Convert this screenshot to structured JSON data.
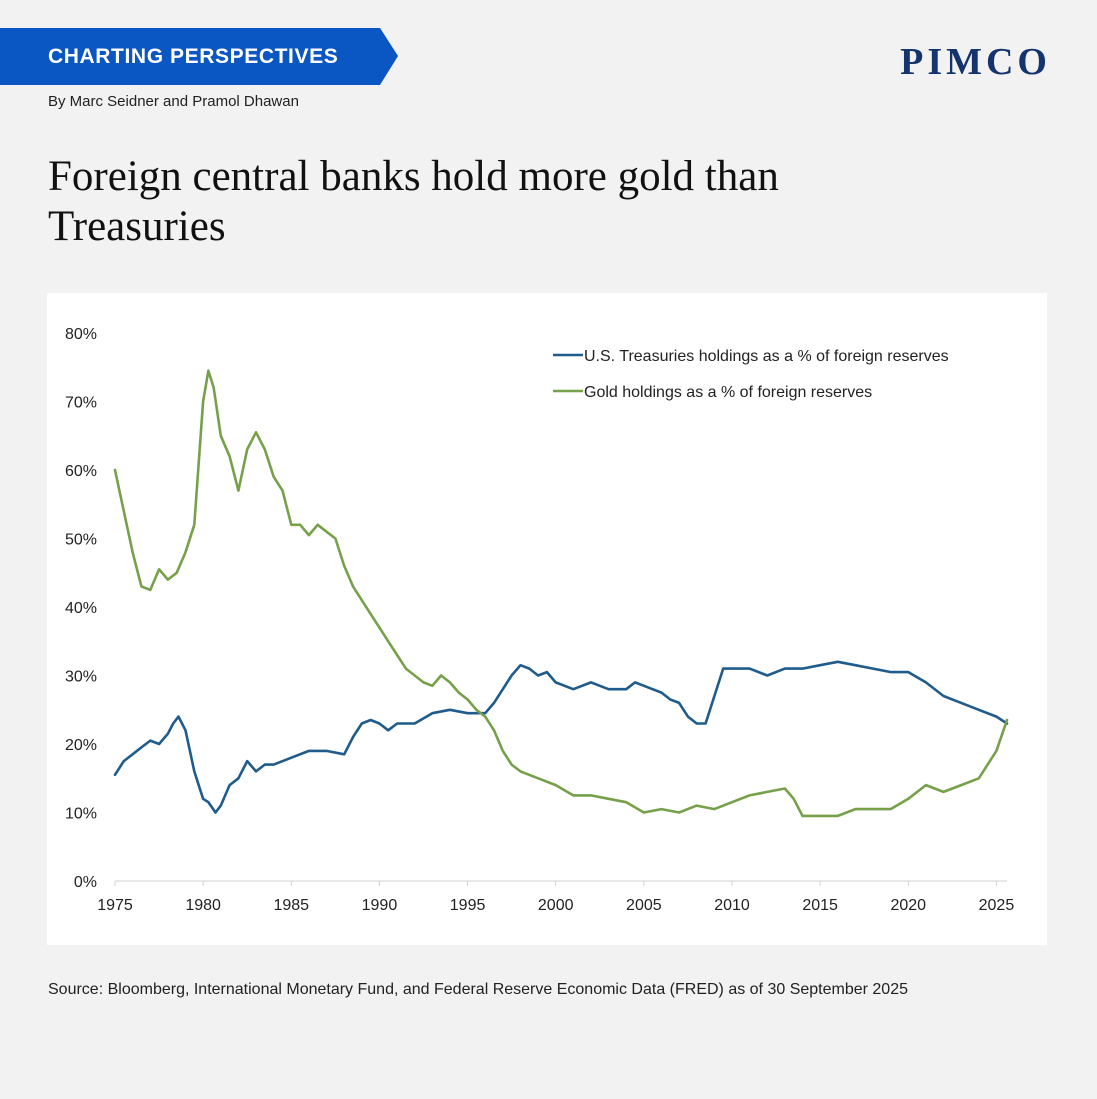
{
  "header": {
    "banner_label": "CHARTING PERSPECTIVES",
    "logo_text": "PIMCO",
    "byline": "By Marc Seidner and Pramol Dhawan",
    "headline_line1": "Foreign central banks hold more gold than",
    "headline_line2": "Treasuries"
  },
  "footer": {
    "source": "Source: Bloomberg, International Monetary Fund, and Federal Reserve Economic Data (FRED) as of 30 September 2025"
  },
  "colors": {
    "banner": "#0a56c2",
    "logo": "#14346e",
    "treasuries": "#1f5c8b",
    "gold": "#76a04a"
  },
  "chart_data": {
    "type": "line",
    "title": "Foreign central banks hold more gold than Treasuries",
    "xlabel": "",
    "ylabel": "",
    "xlim": [
      1975,
      2025.6
    ],
    "ylim": [
      0,
      80
    ],
    "x_ticks": [
      1975,
      1980,
      1985,
      1990,
      1995,
      2000,
      2005,
      2010,
      2015,
      2020,
      2025
    ],
    "y_ticks": [
      0,
      10,
      20,
      30,
      40,
      50,
      60,
      70,
      80
    ],
    "y_tick_labels": [
      "0%",
      "10%",
      "20%",
      "30%",
      "40%",
      "50%",
      "60%",
      "70%",
      "80%"
    ],
    "grid": false,
    "legend_position": "top-right",
    "series": [
      {
        "name": "U.S. Treasuries holdings as a % of foreign reserves",
        "color": "#1f5c8b",
        "x": [
          1975,
          1975.5,
          1976,
          1976.5,
          1977,
          1977.5,
          1978,
          1978.3,
          1978.6,
          1979,
          1979.5,
          1980,
          1980.3,
          1980.7,
          1981,
          1981.5,
          1982,
          1982.5,
          1983,
          1983.5,
          1984,
          1985,
          1986,
          1987,
          1988,
          1988.5,
          1989,
          1989.5,
          1990,
          1990.5,
          1991,
          1992,
          1993,
          1994,
          1995,
          1996,
          1996.5,
          1997,
          1997.5,
          1998,
          1998.5,
          1999,
          1999.5,
          2000,
          2001,
          2002,
          2002.5,
          2003,
          2004,
          2004.5,
          2005,
          2006,
          2006.5,
          2007,
          2007.5,
          2008,
          2008.5,
          2009,
          2009.5,
          2010,
          2011,
          2012,
          2013,
          2014,
          2015,
          2016,
          2017,
          2018,
          2019,
          2020,
          2021,
          2022,
          2023,
          2024,
          2025,
          2025.6
        ],
        "values": [
          15.5,
          17.5,
          18.5,
          19.5,
          20.5,
          20,
          21.5,
          23,
          24,
          22,
          16,
          12,
          11.5,
          10,
          11,
          14,
          15,
          17.5,
          16,
          17,
          17,
          18,
          19,
          19,
          18.5,
          21,
          23,
          23.5,
          23,
          22,
          23,
          23,
          24.5,
          25,
          24.5,
          24.5,
          26,
          28,
          30,
          31.5,
          31,
          30,
          30.5,
          29,
          28,
          29,
          28.5,
          28,
          28,
          29,
          28.5,
          27.5,
          26.5,
          26,
          24,
          23,
          23,
          27,
          31,
          31,
          31,
          30,
          31,
          31,
          31.5,
          32,
          31.5,
          31,
          30.5,
          30.5,
          29,
          27,
          26,
          25,
          24,
          23
        ]
      },
      {
        "name": "Gold holdings as a % of foreign reserves",
        "color": "#76a04a",
        "x": [
          1975,
          1975.5,
          1976,
          1976.5,
          1977,
          1977.5,
          1978,
          1978.5,
          1979,
          1979.5,
          1980,
          1980.3,
          1980.6,
          1981,
          1981.5,
          1982,
          1982.5,
          1983,
          1983.5,
          1984,
          1984.5,
          1985,
          1985.5,
          1986,
          1986.5,
          1987,
          1987.5,
          1988,
          1988.5,
          1989,
          1989.5,
          1990,
          1990.5,
          1991,
          1991.5,
          1992,
          1992.5,
          1993,
          1993.5,
          1994,
          1994.5,
          1995,
          1995.5,
          1996,
          1996.5,
          1997,
          1997.5,
          1998,
          1999,
          2000,
          2001,
          2002,
          2003,
          2004,
          2005,
          2006,
          2007,
          2008,
          2009,
          2010,
          2011,
          2012,
          2013,
          2013.5,
          2014,
          2015,
          2016,
          2017,
          2018,
          2019,
          2020,
          2021,
          2022,
          2023,
          2024,
          2025,
          2025.6
        ],
        "values": [
          60,
          54,
          48,
          43,
          42.5,
          45.5,
          44,
          45,
          48,
          52,
          70,
          74.5,
          72,
          65,
          62,
          57,
          63,
          65.5,
          63,
          59,
          57,
          52,
          52,
          50.5,
          52,
          51,
          50,
          46,
          43,
          41,
          39,
          37,
          35,
          33,
          31,
          30,
          29,
          28.5,
          30,
          29,
          27.5,
          26.5,
          25,
          24,
          22,
          19,
          17,
          16,
          15,
          14,
          12.5,
          12.5,
          12,
          11.5,
          10,
          10.5,
          10,
          11,
          10.5,
          11.5,
          12.5,
          13,
          13.5,
          12,
          9.5,
          9.5,
          9.5,
          10.5,
          10.5,
          10.5,
          12,
          14,
          13,
          14,
          15,
          19,
          23.5
        ]
      }
    ]
  }
}
